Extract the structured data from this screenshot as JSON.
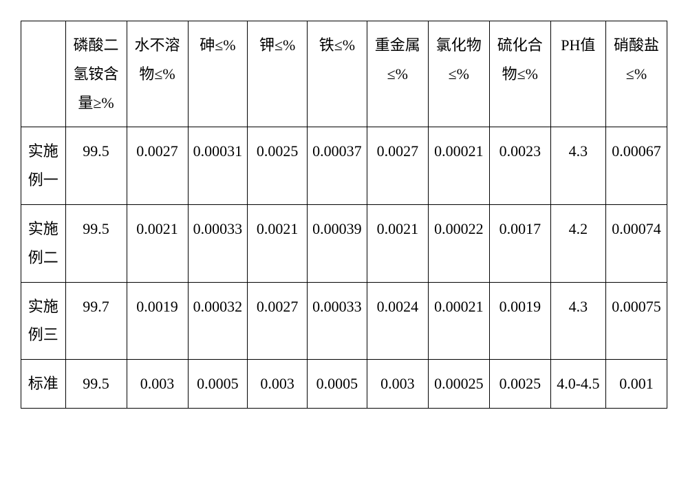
{
  "table": {
    "columns": [
      "",
      "磷酸二氢铵含量≥%",
      "水不溶物≤%",
      "砷≤%",
      "钾≤%",
      "铁≤%",
      "重金属≤%",
      "氯化物≤%",
      "硫化合物≤%",
      "PH值",
      "硝酸盐≤%"
    ],
    "rows": [
      {
        "label": "实施例一",
        "cells": [
          "99.5",
          "0.0027",
          "0.00031",
          "0.0025",
          "0.00037",
          "0.0027",
          "0.00021",
          "0.0023",
          "4.3",
          "0.00067"
        ]
      },
      {
        "label": "实施例二",
        "cells": [
          "99.5",
          "0.0021",
          "0.00033",
          "0.0021",
          "0.00039",
          "0.0021",
          "0.00022",
          "0.0017",
          "4.2",
          "0.00074"
        ]
      },
      {
        "label": "实施例三",
        "cells": [
          "99.7",
          "0.0019",
          "0.00032",
          "0.0027",
          "0.00033",
          "0.0024",
          "0.00021",
          "0.0019",
          "4.3",
          "0.00075"
        ]
      },
      {
        "label": "标准",
        "cells": [
          "99.5",
          "0.003",
          "0.0005",
          "0.003",
          "0.0005",
          "0.003",
          "0.00025",
          "0.0025",
          "4.0-4.5",
          "0.001"
        ]
      }
    ],
    "col_widths": [
      "58px",
      "80px",
      "80px",
      "78px",
      "78px",
      "78px",
      "80px",
      "80px",
      "80px",
      "72px",
      "80px"
    ],
    "border_color": "#000000",
    "background_color": "#ffffff",
    "font_size": 22,
    "line_height": 1.9
  }
}
